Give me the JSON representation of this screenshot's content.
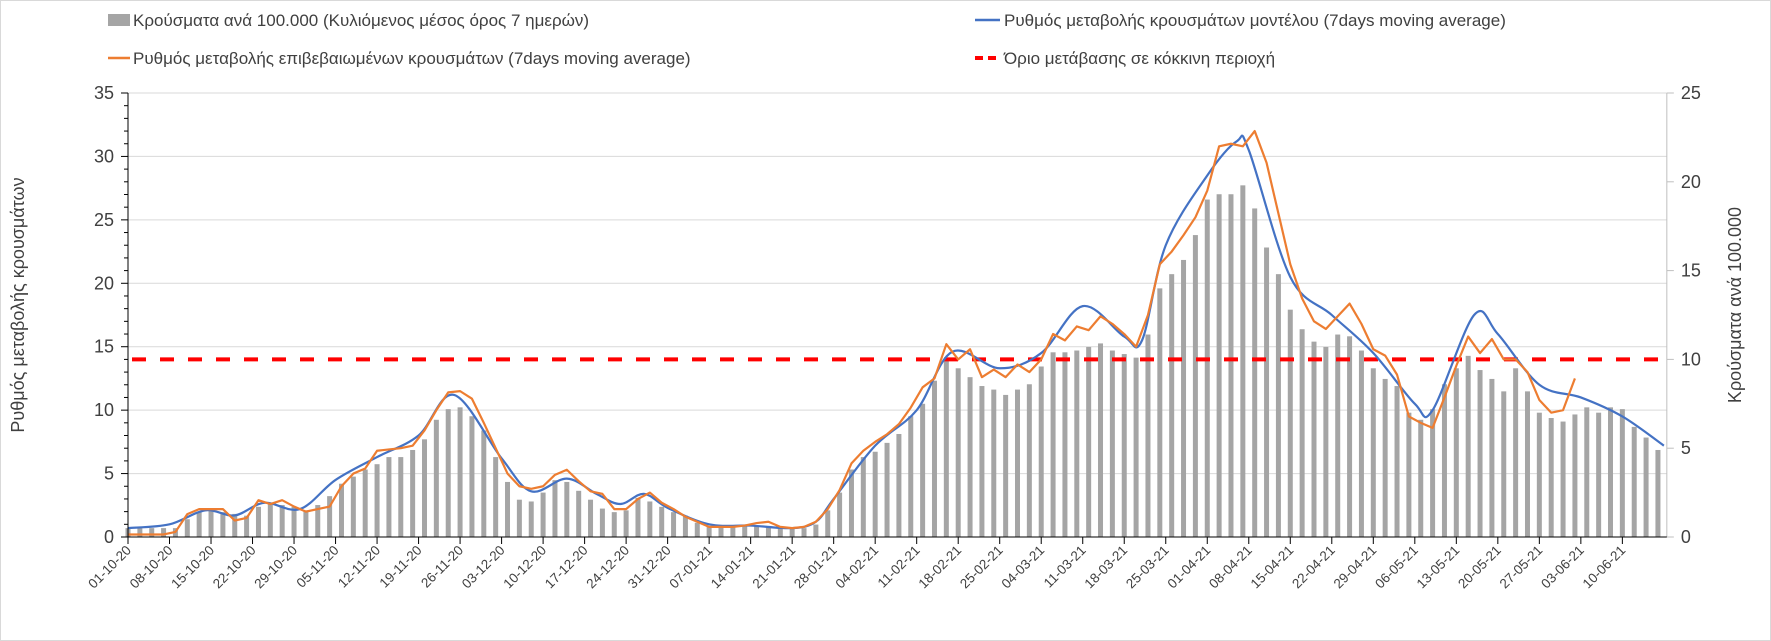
{
  "chart_data": {
    "type": "bar+line",
    "legend": {
      "bars": "Κρούσματα ανά 100.000 (Κυλιόμενος μέσος όρος 7 ημερών)",
      "model": "Ρυθμός μεταβολής κρουσμάτων μοντέλου (7days moving average)",
      "confirmed": "Ρυθμός μεταβολής επιβεβαιωμένων κρουσμάτων (7days moving average)",
      "threshold": "Όριο μετάβασης σε κόκκινη περιοχή",
      "placement": "top"
    },
    "ylabel_left": "Ρυθμός μεταβολής κρουσμάτων",
    "ylabel_right": "Κρούσματα ανά 100.000",
    "ylim_left": [
      0,
      35
    ],
    "ylim_right": [
      0,
      25
    ],
    "yticks_left": [
      "0",
      "5",
      "10",
      "15",
      "20",
      "25",
      "30",
      "35"
    ],
    "yticks_right": [
      "0",
      "5",
      "10",
      "15",
      "20",
      "25"
    ],
    "grid": true,
    "x_start": "01-10-20",
    "x_days": 260,
    "xtick_labels": [
      "01-10-20",
      "08-10-20",
      "15-10-20",
      "22-10-20",
      "29-10-20",
      "05-11-20",
      "12-11-20",
      "19-11-20",
      "26-11-20",
      "03-12-20",
      "10-12-20",
      "17-12-20",
      "24-12-20",
      "31-12-20",
      "07-01-21",
      "14-01-21",
      "21-01-21",
      "28-01-21",
      "04-02-21",
      "11-02-21",
      "18-02-21",
      "25-02-21",
      "04-03-21",
      "11-03-21",
      "18-03-21",
      "25-03-21",
      "01-04-21",
      "08-04-21",
      "15-04-21",
      "22-04-21",
      "29-04-21",
      "06-05-21",
      "13-05-21",
      "20-05-21",
      "27-05-21",
      "03-06-21",
      "10-06-21"
    ],
    "threshold_value": 14,
    "colors": {
      "bars": "#a5a5a5",
      "model": "#4472c4",
      "confirmed": "#ed7d31",
      "threshold": "#ff0000"
    },
    "bars_step_days": 2,
    "bars_right_axis": [
      0.5,
      0.5,
      0.5,
      0.5,
      0.5,
      1.0,
      1.4,
      1.5,
      1.4,
      1.3,
      1.2,
      1.7,
      1.9,
      1.8,
      1.7,
      1.5,
      1.8,
      2.3,
      3.0,
      3.4,
      3.8,
      4.1,
      4.5,
      4.5,
      4.9,
      5.5,
      6.6,
      7.2,
      7.3,
      6.8,
      6.0,
      4.5,
      3.1,
      2.1,
      2.0,
      2.5,
      3.2,
      3.1,
      2.6,
      2.1,
      1.6,
      1.4,
      1.5,
      2.2,
      2.0,
      1.7,
      1.4,
      1.2,
      0.8,
      0.6,
      0.6,
      0.6,
      0.6,
      0.6,
      0.6,
      0.5,
      0.5,
      0.5,
      0.7,
      1.5,
      2.5,
      3.8,
      4.5,
      4.8,
      5.3,
      5.8,
      6.8,
      7.5,
      8.8,
      10.0,
      9.5,
      9.0,
      8.5,
      8.3,
      8.0,
      8.3,
      8.6,
      9.6,
      10.4,
      10.4,
      10.5,
      10.7,
      10.9,
      10.5,
      10.3,
      10.1,
      11.4,
      14.0,
      14.8,
      15.6,
      17.0,
      19.0,
      19.3,
      19.3,
      19.8,
      18.5,
      16.3,
      14.8,
      12.8,
      11.7,
      11.0,
      10.7,
      11.4,
      11.3,
      10.5,
      9.5,
      8.9,
      8.5,
      7.0,
      6.6,
      7.2,
      8.6,
      9.5,
      10.2,
      9.4,
      8.9,
      8.2,
      9.5,
      8.2,
      7.0,
      6.7,
      6.5,
      6.9,
      7.3,
      7.0,
      7.3,
      7.2,
      6.2,
      5.6,
      4.9
    ],
    "confirmed_step_days": 2,
    "confirmed_left_axis": [
      0.2,
      0.2,
      0.2,
      0.2,
      0.4,
      1.8,
      2.2,
      2.2,
      2.2,
      1.3,
      1.5,
      2.9,
      2.6,
      2.9,
      2.4,
      2.0,
      2.2,
      2.4,
      4.0,
      5.0,
      5.4,
      6.8,
      6.9,
      7.0,
      7.2,
      8.4,
      10.0,
      11.4,
      11.5,
      10.9,
      9.0,
      7.0,
      5.0,
      4.0,
      3.8,
      4.0,
      4.9,
      5.3,
      4.4,
      3.6,
      3.4,
      2.2,
      2.2,
      3.0,
      3.5,
      2.7,
      2.2,
      1.6,
      1.2,
      0.8,
      0.8,
      0.8,
      0.9,
      1.1,
      1.2,
      0.8,
      0.7,
      0.8,
      1.2,
      2.2,
      3.7,
      5.8,
      6.8,
      7.5,
      8.1,
      8.9,
      10.2,
      11.8,
      12.5,
      15.2,
      14.0,
      14.8,
      12.6,
      13.2,
      12.6,
      13.6,
      13.0,
      14.0,
      16.0,
      15.5,
      16.6,
      16.3,
      17.4,
      16.8,
      16.0,
      15.0,
      17.5,
      21.5,
      22.5,
      23.8,
      25.2,
      27.3,
      30.8,
      31.0,
      30.8,
      32.0,
      29.5,
      25.5,
      21.5,
      18.8,
      17.0,
      16.4,
      17.4,
      18.4,
      16.8,
      14.8,
      14.3,
      12.8,
      9.5,
      9.0,
      8.6,
      11.0,
      13.5,
      15.8,
      14.5,
      15.6,
      14.0,
      14.0,
      13.0,
      10.8,
      9.8,
      10.0,
      12.5
    ],
    "model_left_axis": [
      [
        0,
        0.7
      ],
      [
        7,
        1.0
      ],
      [
        13,
        2.1
      ],
      [
        18,
        1.7
      ],
      [
        23,
        2.7
      ],
      [
        29,
        2.2
      ],
      [
        35,
        4.5
      ],
      [
        42,
        6.3
      ],
      [
        49,
        8.0
      ],
      [
        55,
        11.2
      ],
      [
        63,
        6.2
      ],
      [
        68,
        3.6
      ],
      [
        74,
        4.6
      ],
      [
        79,
        3.4
      ],
      [
        83,
        2.6
      ],
      [
        87,
        3.4
      ],
      [
        91,
        2.3
      ],
      [
        98,
        1.0
      ],
      [
        105,
        0.9
      ],
      [
        112,
        0.7
      ],
      [
        116,
        1.2
      ],
      [
        119,
        3.0
      ],
      [
        126,
        7.2
      ],
      [
        133,
        10.0
      ],
      [
        139,
        14.6
      ],
      [
        147,
        13.3
      ],
      [
        154,
        14.5
      ],
      [
        161,
        18.2
      ],
      [
        168,
        15.8
      ],
      [
        171,
        15.5
      ],
      [
        175,
        23.0
      ],
      [
        182,
        28.5
      ],
      [
        187,
        31.2
      ],
      [
        189,
        30.5
      ],
      [
        196,
        20.5
      ],
      [
        203,
        17.5
      ],
      [
        210,
        14.5
      ],
      [
        217,
        10.5
      ],
      [
        220,
        10.0
      ],
      [
        227,
        17.5
      ],
      [
        231,
        16.0
      ],
      [
        238,
        12.0
      ],
      [
        245,
        11.0
      ],
      [
        252,
        9.5
      ],
      [
        259,
        7.2
      ]
    ]
  }
}
